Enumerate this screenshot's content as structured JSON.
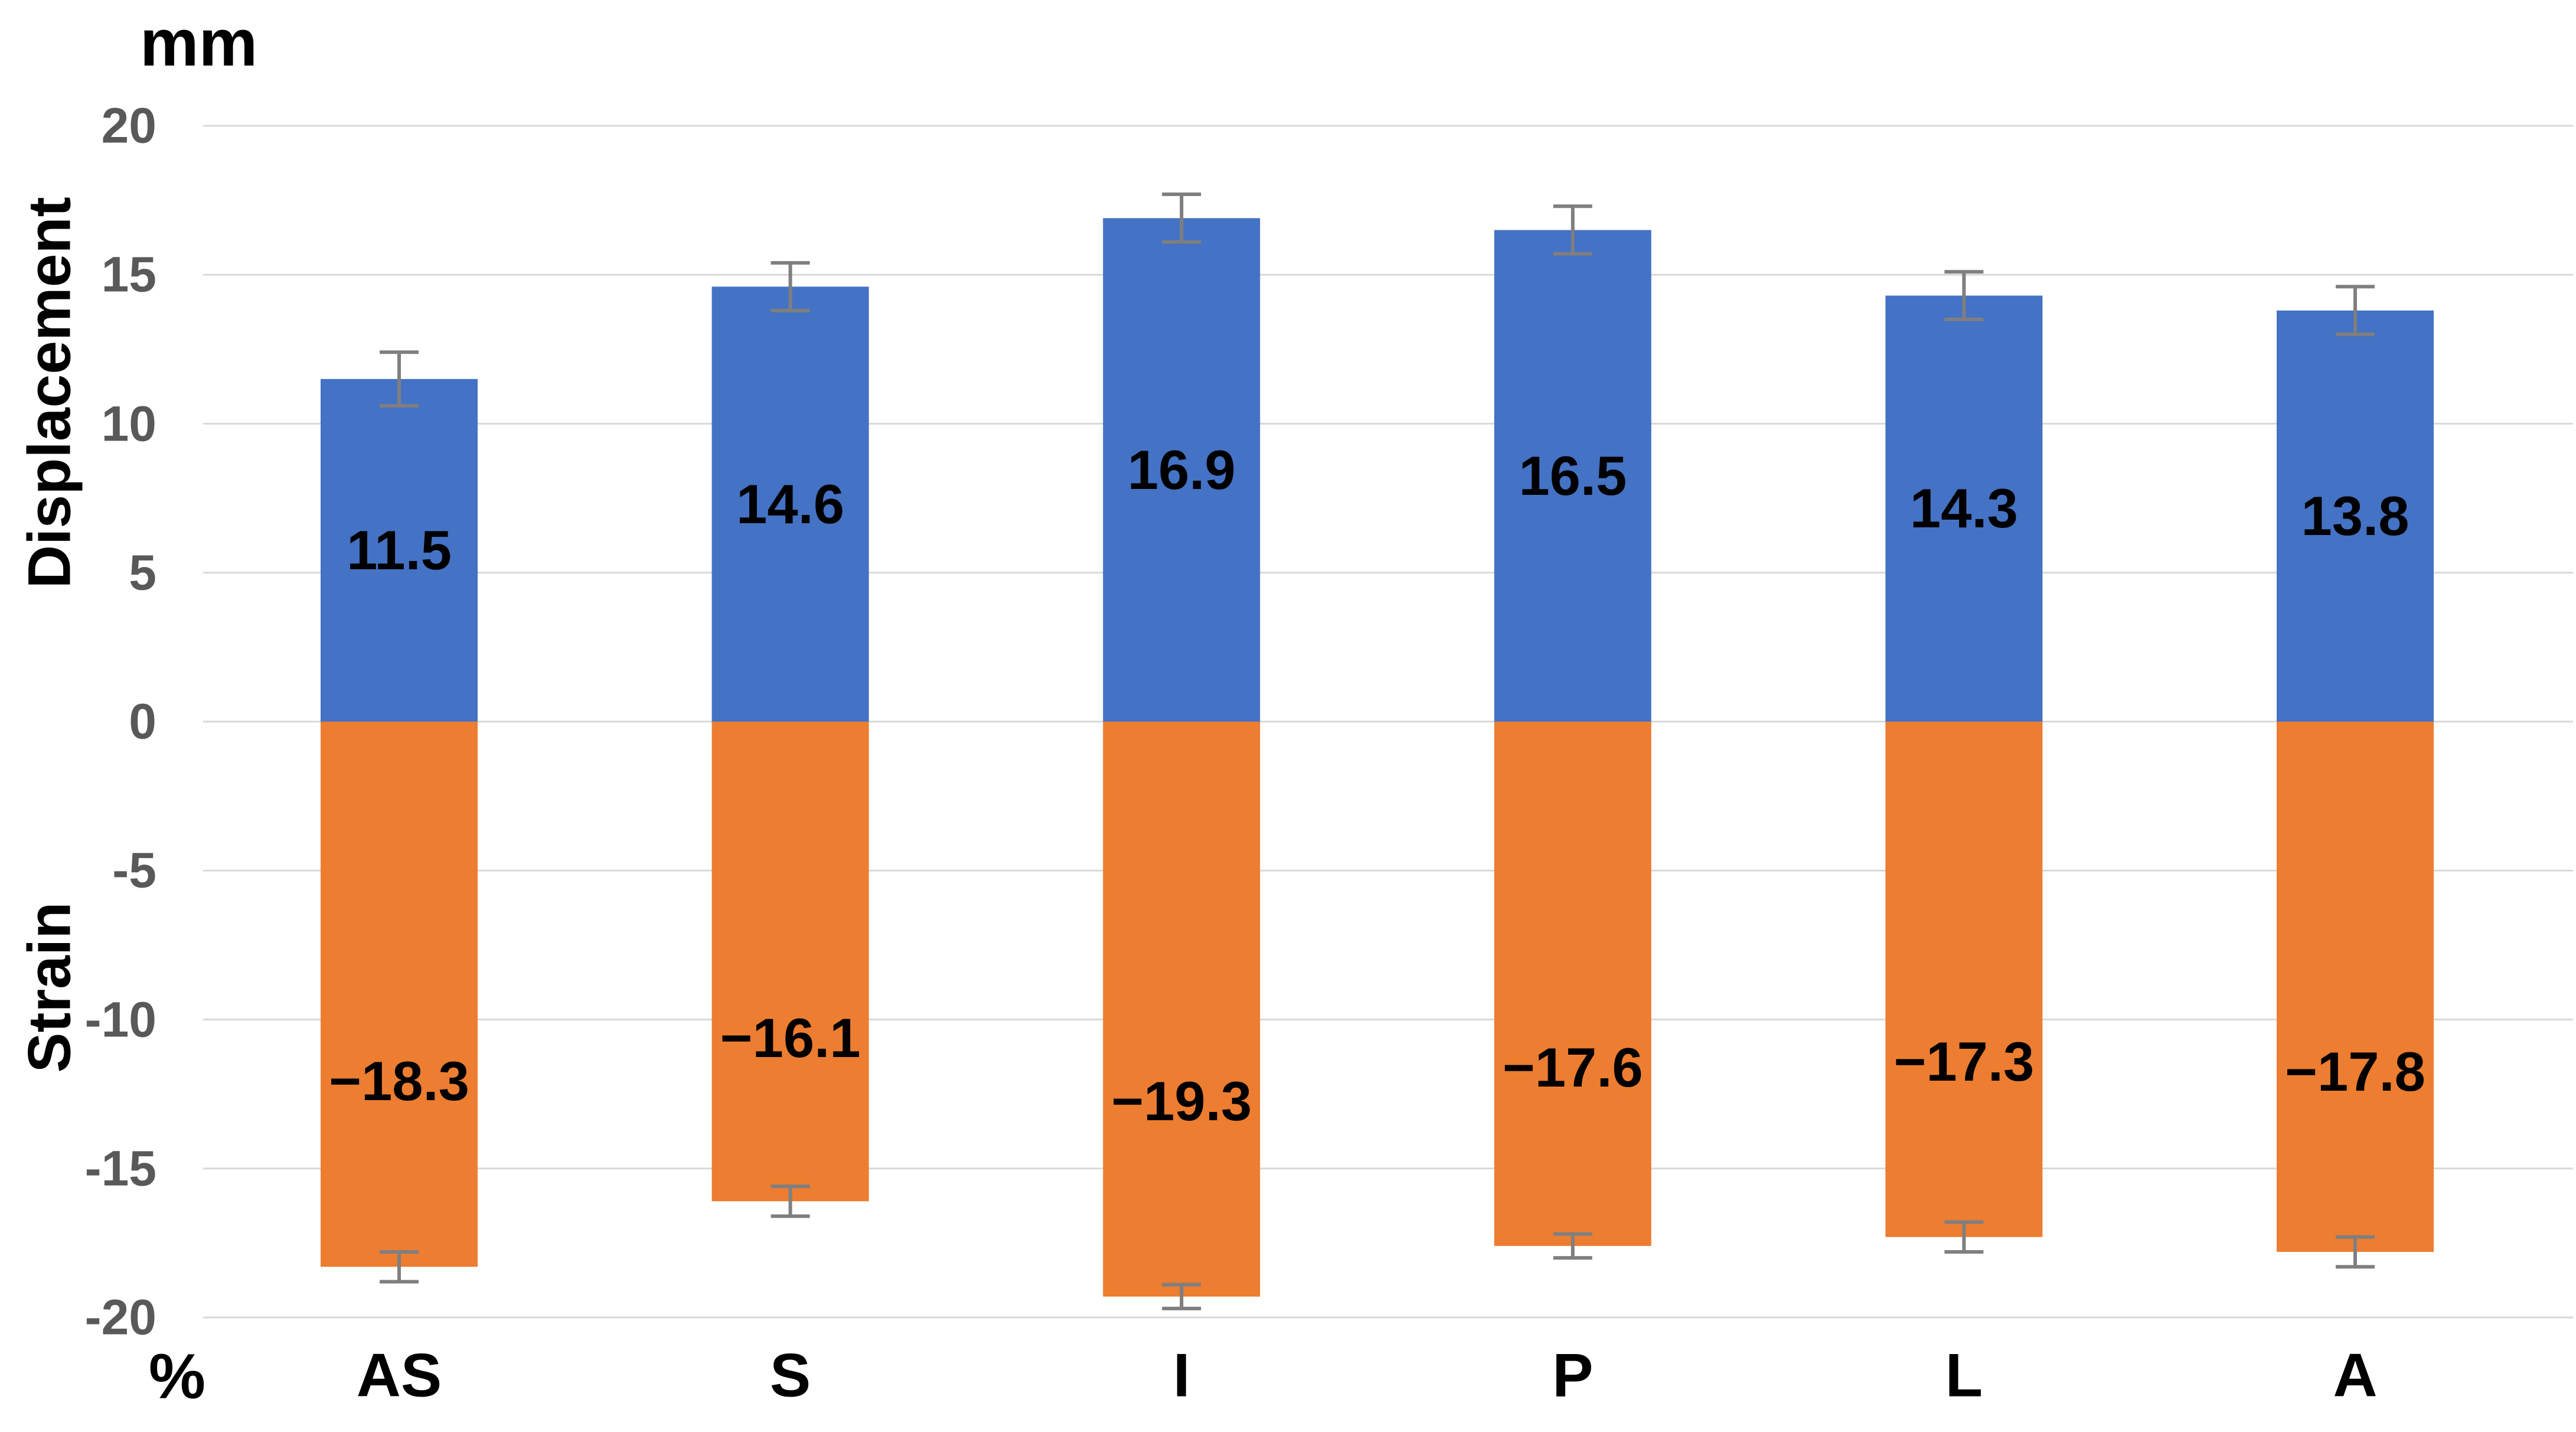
{
  "chart_data": {
    "type": "bar",
    "title": "",
    "y_axis_unit_top": "mm",
    "y_axis_unit_bottom": "%",
    "upper_axis_label": "Displacement",
    "lower_axis_label": "Strain",
    "categories": [
      "AS",
      "S",
      "I",
      "P",
      "L",
      "A"
    ],
    "series": [
      {
        "name": "Displacement",
        "unit": "mm",
        "color": "#4472C4",
        "values": [
          11.5,
          14.6,
          16.9,
          16.5,
          14.3,
          13.8
        ],
        "labels": [
          "11.5",
          "14.6",
          "16.9",
          "16.5",
          "14.3",
          "13.8"
        ],
        "errors": [
          0.9,
          0.8,
          0.8,
          0.8,
          0.8,
          0.8
        ]
      },
      {
        "name": "Strain",
        "unit": "%",
        "color": "#ED7D31",
        "values": [
          -18.3,
          -16.1,
          -19.3,
          -17.6,
          -17.3,
          -17.8
        ],
        "labels": [
          "−18.3",
          "−16.1",
          "−19.3",
          "−17.6",
          "−17.3",
          "−17.8"
        ],
        "errors": [
          0.5,
          0.5,
          0.4,
          0.4,
          0.5,
          0.5
        ]
      }
    ],
    "y_ticks": [
      {
        "v": 20,
        "label": "20"
      },
      {
        "v": 15,
        "label": "15"
      },
      {
        "v": 10,
        "label": "10"
      },
      {
        "v": 5,
        "label": "5"
      },
      {
        "v": 0,
        "label": "0"
      },
      {
        "v": -5,
        "label": "-5"
      },
      {
        "v": -10,
        "label": "-10"
      },
      {
        "v": -15,
        "label": "-15"
      },
      {
        "v": -20,
        "label": "-20"
      }
    ],
    "ylim": [
      -20,
      20
    ],
    "grid": true,
    "legend": "none",
    "colors": {
      "gridline": "#D9D9D9",
      "tick_text": "#595959",
      "error_bar": "#7F7F7F",
      "background": "#FFFFFF",
      "label_text": "#000000"
    }
  }
}
